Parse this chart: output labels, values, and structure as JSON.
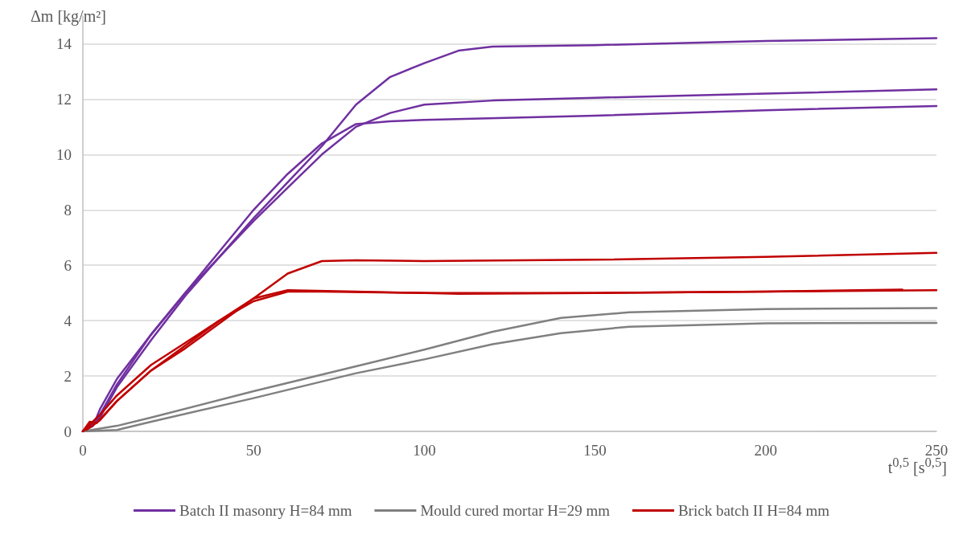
{
  "chart_data": {
    "type": "line",
    "xlabel": "t$^{0,5}$ [s$^{0,5}$]",
    "ylabel": "Δm [kg/m²]",
    "xlim": [
      0,
      250
    ],
    "xticks": [
      0,
      50,
      100,
      150,
      200,
      250
    ],
    "ylim": [
      0,
      15
    ],
    "yticks": [
      0,
      2,
      4,
      6,
      8,
      10,
      12,
      14
    ],
    "grid": "y",
    "legend": "bottom",
    "marker": "none",
    "line_style": "solid",
    "series": [
      {
        "name": "Batch II masonry H=84 mm",
        "color": "#7030a0",
        "x": [
          0,
          3,
          5,
          10,
          20,
          30,
          40,
          50,
          60,
          70,
          80,
          90,
          100,
          110,
          120,
          150,
          200,
          250
        ],
        "values": [
          0,
          0.2,
          0.8,
          1.9,
          3.5,
          5.0,
          6.3,
          7.7,
          9.0,
          10.3,
          11.8,
          12.8,
          13.3,
          13.75,
          13.9,
          13.95,
          14.1,
          14.2
        ]
      },
      {
        "color": "#7030a0",
        "x": [
          0,
          5,
          10,
          20,
          30,
          40,
          50,
          60,
          70,
          80,
          90,
          100,
          150,
          200,
          250
        ],
        "values": [
          0,
          0.6,
          1.7,
          3.5,
          5.0,
          6.5,
          8.0,
          9.3,
          10.4,
          11.1,
          11.2,
          11.25,
          11.4,
          11.6,
          11.75
        ]
      },
      {
        "color": "#7030a0",
        "x": [
          0,
          5,
          10,
          20,
          30,
          40,
          50,
          60,
          70,
          80,
          90,
          100,
          120,
          150,
          200,
          250
        ],
        "values": [
          0,
          0.5,
          1.6,
          3.3,
          4.9,
          6.3,
          7.6,
          8.8,
          10.0,
          11.0,
          11.5,
          11.8,
          11.95,
          12.05,
          12.2,
          12.35
        ]
      },
      {
        "name": "Mould cured mortar H=29 mm",
        "color": "#808080",
        "x": [
          0,
          5,
          10,
          20,
          50,
          80,
          100,
          120,
          140,
          160,
          200,
          250
        ],
        "values": [
          0,
          0.1,
          0.2,
          0.5,
          1.45,
          2.35,
          2.95,
          3.6,
          4.1,
          4.3,
          4.42,
          4.45
        ]
      },
      {
        "color": "#808080",
        "x": [
          0,
          10,
          20,
          50,
          80,
          100,
          120,
          140,
          160,
          200,
          250
        ],
        "values": [
          0,
          0.05,
          0.35,
          1.2,
          2.1,
          2.6,
          3.15,
          3.55,
          3.78,
          3.9,
          3.92
        ]
      },
      {
        "name": "Brick batch II H=84 mm",
        "color": "#c00000",
        "x": [
          0,
          2,
          4,
          10,
          20,
          30,
          40,
          50,
          60,
          70,
          80,
          100,
          150,
          200,
          250
        ],
        "values": [
          0,
          0.35,
          0.3,
          1.1,
          2.2,
          3.0,
          3.9,
          4.8,
          5.7,
          6.15,
          6.18,
          6.15,
          6.2,
          6.3,
          6.45
        ]
      },
      {
        "color": "#c00000",
        "x": [
          0,
          5,
          10,
          20,
          30,
          40,
          50,
          60,
          70,
          100,
          150,
          200,
          250
        ],
        "values": [
          0,
          0.6,
          1.3,
          2.4,
          3.2,
          4.0,
          4.7,
          5.05,
          5.05,
          5.0,
          5.0,
          5.05,
          5.1
        ]
      },
      {
        "color": "#c00000",
        "x": [
          1,
          5,
          10,
          20,
          30,
          40,
          50,
          60,
          80,
          110,
          150,
          200,
          240
        ],
        "values": [
          0.05,
          0.4,
          1.1,
          2.2,
          3.1,
          4.0,
          4.8,
          5.1,
          5.05,
          4.97,
          5.0,
          5.05,
          5.12
        ]
      }
    ]
  }
}
